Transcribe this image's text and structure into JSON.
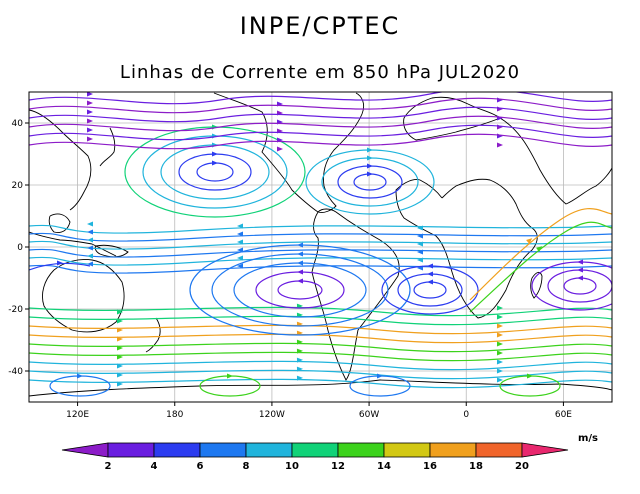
{
  "header": {
    "title": "INPE/CPTEC",
    "subtitle": "Linhas de Corrente em 850 hPa JUL2020"
  },
  "map": {
    "projection": "cylindrical",
    "lon_range": [
      90,
      450
    ],
    "lat_range": [
      -50,
      50
    ],
    "grid": true,
    "lon_tick_labels": [
      {
        "lon": 120,
        "label": "120E"
      },
      {
        "lon": 180,
        "label": "180"
      },
      {
        "lon": 240,
        "label": "120W"
      },
      {
        "lon": 300,
        "label": "60W"
      },
      {
        "lon": 360,
        "label": "0"
      },
      {
        "lon": 420,
        "label": "60E"
      }
    ],
    "lat_tick_labels": [
      {
        "lat": 40,
        "label": "40"
      },
      {
        "lat": 20,
        "label": "20"
      },
      {
        "lat": 0,
        "label": "0"
      },
      {
        "lat": -20,
        "label": "-20"
      },
      {
        "lat": -40,
        "label": "-40"
      }
    ]
  },
  "legend": {
    "unit": "m/s",
    "labels": [
      "2",
      "4",
      "6",
      "8",
      "10",
      "12",
      "14",
      "16",
      "18",
      "20"
    ],
    "colors": [
      "#8c1cc8",
      "#6a1ee0",
      "#2c3cf0",
      "#1e78f0",
      "#20b4dc",
      "#10d278",
      "#3cd21c",
      "#d2c814",
      "#f0a01e",
      "#f0642a",
      "#e8286e"
    ]
  }
}
